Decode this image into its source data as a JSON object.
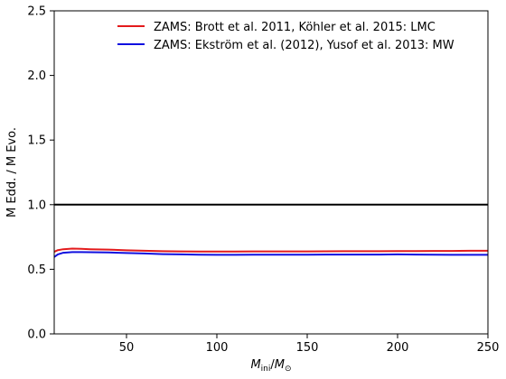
{
  "chart_data": {
    "type": "line",
    "title": "",
    "xlabel": "M_ini/M_⊙",
    "xlabel_parts": {
      "main": "M",
      "sub": "ini",
      "sep": "/",
      "main2": "M",
      "sub2": "⊙"
    },
    "ylabel": "M Edd. / M Evo.",
    "xlim": [
      10,
      250
    ],
    "ylim": [
      0.0,
      2.5
    ],
    "xticks": [
      50,
      100,
      150,
      200,
      250
    ],
    "xtick_labels": [
      "50",
      "100",
      "150",
      "200",
      "250"
    ],
    "yticks": [
      0.0,
      0.5,
      1.0,
      1.5,
      2.0,
      2.5
    ],
    "ytick_labels": [
      "0.0",
      "0.5",
      "1.0",
      "1.5",
      "2.0",
      "2.5"
    ],
    "grid": false,
    "legend_position": "top-right",
    "reference_line": {
      "y": 1.0,
      "color": "#000000"
    },
    "series": [
      {
        "name": "ZAMS: Brott et al. 2011, Köhler et al. 2015: LMC",
        "color": "#e31a1c",
        "x": [
          10,
          12,
          15,
          20,
          25,
          30,
          40,
          50,
          60,
          70,
          80,
          90,
          100,
          110,
          120,
          130,
          140,
          150,
          160,
          170,
          180,
          190,
          200,
          210,
          220,
          230,
          240,
          250
        ],
        "y": [
          0.635,
          0.648,
          0.655,
          0.66,
          0.658,
          0.655,
          0.652,
          0.647,
          0.643,
          0.64,
          0.638,
          0.637,
          0.637,
          0.637,
          0.638,
          0.638,
          0.638,
          0.638,
          0.639,
          0.64,
          0.64,
          0.64,
          0.641,
          0.641,
          0.642,
          0.642,
          0.643,
          0.643
        ]
      },
      {
        "name": "ZAMS: Ekström et al. (2012), Yusof et al. 2013: MW",
        "color": "#1010e0",
        "x": [
          10,
          12,
          15,
          20,
          25,
          30,
          40,
          50,
          60,
          70,
          80,
          90,
          100,
          110,
          120,
          130,
          140,
          150,
          160,
          170,
          180,
          190,
          200,
          210,
          220,
          230,
          240,
          250
        ],
        "y": [
          0.595,
          0.615,
          0.628,
          0.633,
          0.633,
          0.632,
          0.63,
          0.626,
          0.622,
          0.617,
          0.615,
          0.613,
          0.612,
          0.612,
          0.613,
          0.613,
          0.613,
          0.613,
          0.614,
          0.614,
          0.614,
          0.614,
          0.615,
          0.614,
          0.613,
          0.612,
          0.612,
          0.612
        ]
      }
    ]
  }
}
